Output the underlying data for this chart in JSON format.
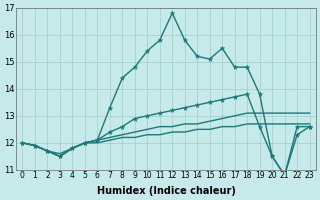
{
  "xlabel": "Humidex (Indice chaleur)",
  "xlim_min": -0.5,
  "xlim_max": 23.5,
  "ylim_min": 11.0,
  "ylim_max": 17.0,
  "yticks": [
    11,
    12,
    13,
    14,
    15,
    16,
    17
  ],
  "xticks": [
    0,
    1,
    2,
    3,
    4,
    5,
    6,
    7,
    8,
    9,
    10,
    11,
    12,
    13,
    14,
    15,
    16,
    17,
    18,
    19,
    20,
    21,
    22,
    23
  ],
  "background_color": "#c6e9e9",
  "grid_color": "#a0cccc",
  "line_color": "#1e7878",
  "lines": [
    {
      "y": [
        12.0,
        11.9,
        11.7,
        11.5,
        11.8,
        12.0,
        12.1,
        13.3,
        14.4,
        14.8,
        15.4,
        15.8,
        16.8,
        15.8,
        15.2,
        15.1,
        15.5,
        14.8,
        14.8,
        13.8,
        11.5,
        10.8,
        12.6,
        12.6
      ],
      "marker": true,
      "lw": 1.0
    },
    {
      "y": [
        12.0,
        11.9,
        11.7,
        11.5,
        11.8,
        12.0,
        12.1,
        12.4,
        12.6,
        12.9,
        13.0,
        13.1,
        13.2,
        13.3,
        13.4,
        13.5,
        13.6,
        13.7,
        13.8,
        12.6,
        11.5,
        10.8,
        12.3,
        12.6
      ],
      "marker": true,
      "lw": 1.0
    },
    {
      "y": [
        12.0,
        11.9,
        11.7,
        11.5,
        11.8,
        12.0,
        12.1,
        12.2,
        12.3,
        12.4,
        12.5,
        12.6,
        12.6,
        12.7,
        12.7,
        12.8,
        12.9,
        13.0,
        13.1,
        13.1,
        13.1,
        13.1,
        13.1,
        13.1
      ],
      "marker": false,
      "lw": 1.0
    },
    {
      "y": [
        12.0,
        11.9,
        11.7,
        11.6,
        11.8,
        12.0,
        12.0,
        12.1,
        12.2,
        12.2,
        12.3,
        12.3,
        12.4,
        12.4,
        12.5,
        12.5,
        12.6,
        12.6,
        12.7,
        12.7,
        12.7,
        12.7,
        12.7,
        12.7
      ],
      "marker": false,
      "lw": 1.0
    }
  ],
  "xlabel_fontsize": 7,
  "tick_fontsize": 5.5,
  "ytick_fontsize": 6
}
